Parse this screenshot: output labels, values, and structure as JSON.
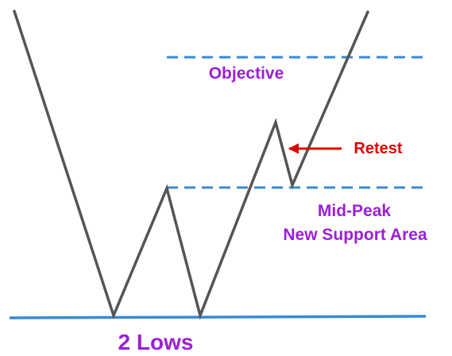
{
  "labels": {
    "objective": "Objective",
    "retest": "Retest",
    "mid_peak": "Mid-Peak",
    "new_support_area": "New Support Area",
    "two_lows": "2 Lows"
  },
  "colors": {
    "price_line": "#555555",
    "support_line": "#3a8ad6",
    "dashed_line": "#3a8ad6",
    "purple_text": "#9b1fd6",
    "red_text": "#e00000",
    "arrow": "#e00000"
  }
}
